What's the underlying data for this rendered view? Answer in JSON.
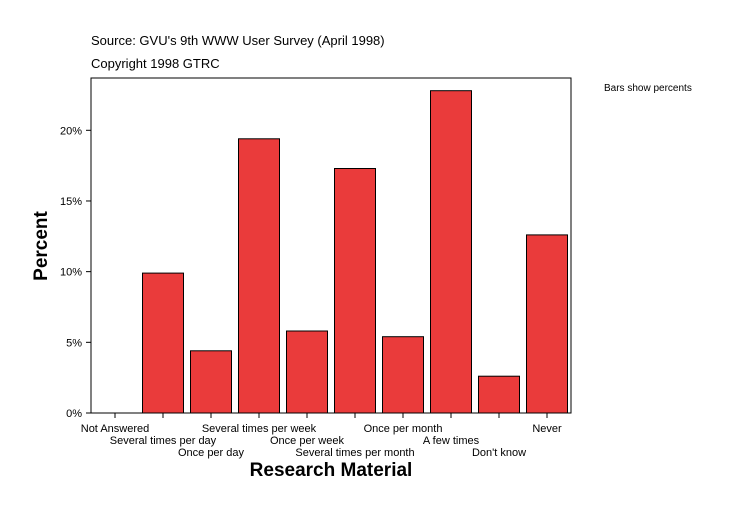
{
  "header": {
    "source": "Source: GVU's 9th WWW User Survey (April 1998)",
    "copyright": "Copyright 1998 GTRC"
  },
  "note": "Bars show percents",
  "colors": {
    "bar": "#ea3b3b",
    "bar_stroke": "#000000",
    "background": "#ffffff"
  },
  "chart_data": {
    "type": "bar",
    "xlabel": "Research Material",
    "ylabel": "Percent",
    "ylim": [
      0,
      23.7
    ],
    "yticks": [
      0,
      5,
      10,
      15,
      20
    ],
    "ytick_labels": [
      "0%",
      "5%",
      "10%",
      "15%",
      "20%"
    ],
    "categories": [
      "Not Answered",
      "Several times per day",
      "Once per day",
      "Several times per week",
      "Once per week",
      "Several times per month",
      "Once per month",
      "A few times",
      "Don't know",
      "Never"
    ],
    "values": [
      0,
      9.9,
      4.4,
      19.4,
      5.8,
      17.3,
      5.4,
      22.8,
      2.6,
      12.6
    ],
    "grid": false,
    "legend": "none"
  }
}
